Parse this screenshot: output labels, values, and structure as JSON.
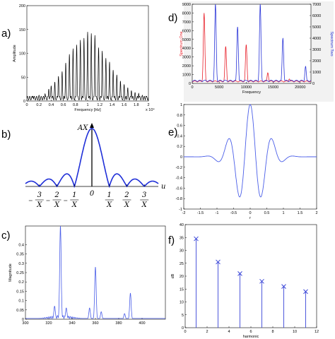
{
  "panels": [
    {
      "id": "a",
      "label": "a)"
    },
    {
      "id": "b",
      "label": "b)"
    },
    {
      "id": "c",
      "label": "c)"
    },
    {
      "id": "d",
      "label": "d)"
    },
    {
      "id": "e",
      "label": "e)"
    },
    {
      "id": "f",
      "label": "f)"
    }
  ],
  "chart_data": [
    {
      "id": "a",
      "type": "line",
      "title": "",
      "xlabel": "Frequency [Hz]",
      "ylabel": "Amplitude",
      "xlim": [
        0,
        20000
      ],
      "ylim": [
        0,
        200
      ],
      "x_exponent": "x 10⁴",
      "xticks": [
        "0",
        "0.2",
        "0.4",
        "0.6",
        "0.8",
        "1",
        "1.2",
        "1.4",
        "1.6",
        "1.8",
        "2"
      ],
      "yticks": [
        "0",
        "50",
        "100",
        "150",
        "200"
      ],
      "grid": false,
      "series": [
        {
          "color": "#000000",
          "peaks": [
            {
              "x": 1000,
              "y": 10
            },
            {
              "x": 2000,
              "y": 12
            },
            {
              "x": 3000,
              "y": 15
            },
            {
              "x": 3600,
              "y": 25
            },
            {
              "x": 4000,
              "y": 32
            },
            {
              "x": 4600,
              "y": 40
            },
            {
              "x": 5200,
              "y": 52
            },
            {
              "x": 5800,
              "y": 62
            },
            {
              "x": 6400,
              "y": 80
            },
            {
              "x": 7000,
              "y": 98
            },
            {
              "x": 7600,
              "y": 110
            },
            {
              "x": 8200,
              "y": 118
            },
            {
              "x": 8800,
              "y": 128
            },
            {
              "x": 9400,
              "y": 132
            },
            {
              "x": 10000,
              "y": 145
            },
            {
              "x": 10600,
              "y": 142
            },
            {
              "x": 11200,
              "y": 138
            },
            {
              "x": 11800,
              "y": 112
            },
            {
              "x": 12400,
              "y": 105
            },
            {
              "x": 13000,
              "y": 90
            },
            {
              "x": 13600,
              "y": 82
            },
            {
              "x": 14200,
              "y": 65
            },
            {
              "x": 14800,
              "y": 55
            },
            {
              "x": 15400,
              "y": 42
            },
            {
              "x": 16000,
              "y": 35
            },
            {
              "x": 16600,
              "y": 28
            },
            {
              "x": 17200,
              "y": 22
            },
            {
              "x": 17800,
              "y": 18
            },
            {
              "x": 18400,
              "y": 16
            },
            {
              "x": 19000,
              "y": 12
            },
            {
              "x": 19600,
              "y": 10
            }
          ]
        }
      ]
    },
    {
      "id": "b",
      "type": "line",
      "function": "|AX sinc(uX)|",
      "peak_label": "AX",
      "xaxis_label": "u",
      "xlim": [
        -3.8,
        3.8
      ],
      "ylim": [
        0,
        1.12
      ],
      "xticks": [
        {
          "value": -3,
          "num": "3",
          "den": "X",
          "neg": true
        },
        {
          "value": -2,
          "num": "2",
          "den": "X",
          "neg": true
        },
        {
          "value": -1,
          "num": "1",
          "den": "X",
          "neg": true
        },
        {
          "value": 0,
          "num": "0",
          "den": "",
          "neg": false
        },
        {
          "value": 1,
          "num": "1",
          "den": "X",
          "neg": false
        },
        {
          "value": 2,
          "num": "2",
          "den": "X",
          "neg": false
        },
        {
          "value": 3,
          "num": "3",
          "den": "X",
          "neg": false
        }
      ],
      "grid": false
    },
    {
      "id": "c",
      "type": "line",
      "xlabel": "",
      "ylabel": "Magnitude",
      "xlim": [
        300,
        420
      ],
      "ylim": [
        0,
        0.5
      ],
      "xticks": [
        "300",
        "320",
        "340",
        "360",
        "380",
        "400"
      ],
      "yticks": [
        "0",
        "0.05",
        "0.1",
        "0.15",
        "0.2",
        "0.25",
        "0.3",
        "0.35",
        "0.4"
      ],
      "grid": false,
      "series": [
        {
          "color": "#4a5ee8",
          "peaks": [
            {
              "x": 325,
              "y": 0.07
            },
            {
              "x": 330,
              "y": 0.5
            },
            {
              "x": 335,
              "y": 0.06
            },
            {
              "x": 355,
              "y": 0.06
            },
            {
              "x": 360,
              "y": 0.28
            },
            {
              "x": 365,
              "y": 0.04
            },
            {
              "x": 390,
              "y": 0.14
            },
            {
              "x": 385,
              "y": 0.03
            }
          ]
        }
      ]
    },
    {
      "id": "d",
      "type": "line",
      "xlabel": "Frequency",
      "ylabel": "Spectrum One",
      "ylabel_right": "Spectrum Two",
      "xlim": [
        0,
        22000
      ],
      "ylim": [
        0,
        9000
      ],
      "ylim_right": [
        0,
        7000
      ],
      "xticks": [
        "0",
        "5000",
        "10000",
        "15000",
        "20000"
      ],
      "yticks": [
        "0",
        "1000",
        "2000",
        "3000",
        "4000",
        "5000",
        "6000",
        "7000",
        "8000",
        "9000"
      ],
      "yticks_right": [
        "0",
        "1000",
        "2000",
        "3000",
        "4000",
        "5000",
        "6000",
        "7000"
      ],
      "grid": false,
      "series": [
        {
          "name": "Spectrum One",
          "color": "#e8202a",
          "axis": "left",
          "peaks": [
            {
              "x": 2200,
              "y": 8000
            },
            {
              "x": 6200,
              "y": 4200
            },
            {
              "x": 10000,
              "y": 4400
            },
            {
              "x": 14000,
              "y": 1200
            },
            {
              "x": 18000,
              "y": 500
            }
          ]
        },
        {
          "name": "Spectrum Two",
          "color": "#2a35d8",
          "axis": "right",
          "peaks": [
            {
              "x": 4300,
              "y": 7000
            },
            {
              "x": 8400,
              "y": 5000
            },
            {
              "x": 12600,
              "y": 7000
            },
            {
              "x": 16800,
              "y": 4000
            },
            {
              "x": 21000,
              "y": 1500
            }
          ]
        }
      ]
    },
    {
      "id": "e",
      "type": "line",
      "xlabel": "r",
      "ylabel": "",
      "xlim": [
        -2,
        2
      ],
      "ylim": [
        -1,
        1
      ],
      "xticks": [
        "-2",
        "-1.5",
        "-1",
        "-0.5",
        "0",
        "0.5",
        "1",
        "1.5",
        "2"
      ],
      "yticks": [
        "-1",
        "-0.8",
        "-0.6",
        "-0.4",
        "-0.2",
        "0",
        "0.2",
        "0.4",
        "0.6",
        "0.8",
        "1"
      ],
      "grid": false,
      "series": [
        {
          "color": "#4a5ee8",
          "function": "exp(-r^2/0.4)·cos(3πr)"
        }
      ]
    },
    {
      "id": "f",
      "type": "bar",
      "subtype": "stem",
      "xlabel": "harmonic",
      "ylabel": "dB",
      "xlim": [
        0,
        12
      ],
      "ylim": [
        0,
        40
      ],
      "xticks": [
        "0",
        "2",
        "4",
        "6",
        "8",
        "10",
        "12"
      ],
      "yticks": [
        "0",
        "5",
        "10",
        "15",
        "20",
        "25",
        "30",
        "35",
        "40"
      ],
      "grid": false,
      "x": [
        1,
        3,
        5,
        7,
        9,
        11
      ],
      "values": [
        34.5,
        25.5,
        21,
        18,
        16,
        14
      ],
      "series_color": "#3a46d8"
    }
  ]
}
